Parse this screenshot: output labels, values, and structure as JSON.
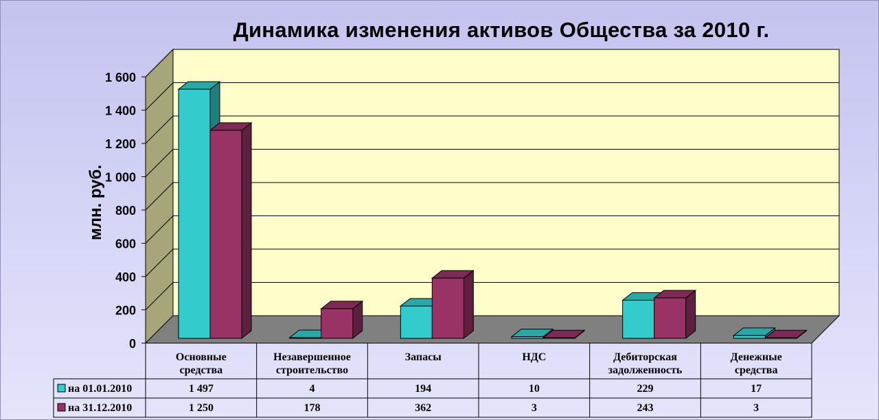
{
  "chart_data": {
    "type": "bar",
    "title": "Динамика изменения активов Общества за 2010 г.",
    "ylabel": "млн. руб.",
    "ylim": [
      0,
      1600
    ],
    "yticks": [
      0,
      200,
      400,
      600,
      800,
      1000,
      1200,
      1400,
      1600
    ],
    "ytick_labels": [
      "0",
      "200",
      "400",
      "600",
      "800",
      "1 000",
      "1 200",
      "1 400",
      "1 600"
    ],
    "grid": true,
    "categories": [
      [
        "Основные",
        "средства"
      ],
      [
        "Незавершенное",
        "строительство"
      ],
      [
        "Запасы"
      ],
      [
        "НДС"
      ],
      [
        "Дебиторская",
        "задолженность"
      ],
      [
        "Денежные",
        "средства"
      ]
    ],
    "series": [
      {
        "name": "на 01.01.2010",
        "values": [
          1497,
          4,
          194,
          10,
          229,
          17
        ],
        "labels": [
          "1 497",
          "4",
          "194",
          "10",
          "229",
          "17"
        ],
        "color": "#33cccc"
      },
      {
        "name": "на 31.12.2010",
        "values": [
          1250,
          178,
          362,
          3,
          243,
          3
        ],
        "labels": [
          "1 250",
          "178",
          "362",
          "3",
          "243",
          "3"
        ],
        "color": "#993366"
      }
    ],
    "legend": "data-table",
    "colors": {
      "back_wall": "#ffffcc",
      "side_wall": "#a6a67a",
      "floor": "#808080"
    }
  }
}
